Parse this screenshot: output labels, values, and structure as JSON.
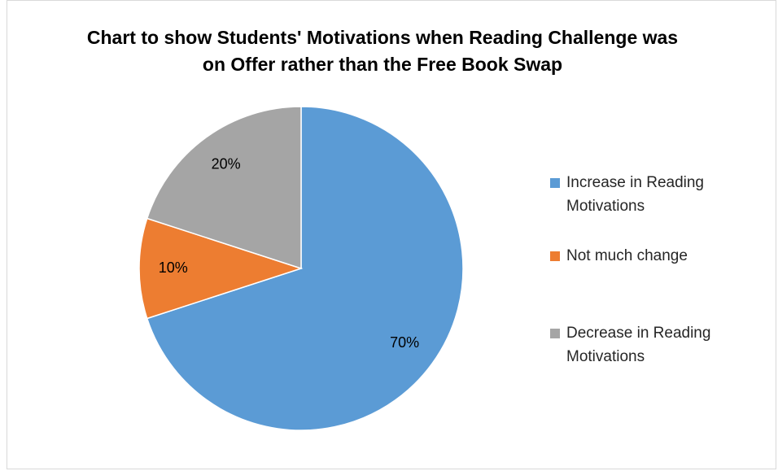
{
  "chart_data": {
    "type": "pie",
    "title": "Chart to show Students' Motivations when Reading Challenge was on Offer rather than the Free Book Swap",
    "categories": [
      "Increase in Reading Motivations",
      "Not much change",
      "Decrease in Reading Motivations"
    ],
    "values": [
      70,
      10,
      20
    ],
    "value_labels": [
      "70%",
      "10%",
      "20%"
    ],
    "colors": [
      "#5b9bd5",
      "#ed7d31",
      "#a5a5a5"
    ],
    "legend": "right"
  }
}
